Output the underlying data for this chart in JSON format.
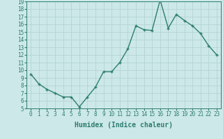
{
  "xlabel": "Humidex (Indice chaleur)",
  "x_values": [
    0,
    1,
    2,
    3,
    4,
    5,
    6,
    7,
    8,
    9,
    10,
    11,
    12,
    13,
    14,
    15,
    16,
    17,
    18,
    19,
    20,
    21,
    22,
    23
  ],
  "y_values": [
    9.5,
    8.2,
    7.5,
    7.0,
    6.5,
    6.5,
    5.2,
    6.5,
    7.8,
    9.8,
    9.8,
    11.0,
    12.8,
    15.8,
    15.3,
    15.2,
    19.2,
    15.5,
    17.3,
    16.5,
    15.8,
    14.8,
    13.2,
    12.0
  ],
  "line_color": "#2d7d6e",
  "marker": "+",
  "marker_size": 3.5,
  "bg_color": "#cce8e8",
  "grid_color": "#b0d0d0",
  "ylim": [
    5,
    19
  ],
  "xlim": [
    -0.5,
    23.5
  ],
  "yticks": [
    5,
    6,
    7,
    8,
    9,
    10,
    11,
    12,
    13,
    14,
    15,
    16,
    17,
    18,
    19
  ],
  "xticks": [
    0,
    1,
    2,
    3,
    4,
    5,
    6,
    7,
    8,
    9,
    10,
    11,
    12,
    13,
    14,
    15,
    16,
    17,
    18,
    19,
    20,
    21,
    22,
    23
  ],
  "tick_label_fontsize": 5.5,
  "axis_label_fontsize": 7,
  "line_width": 1.0
}
